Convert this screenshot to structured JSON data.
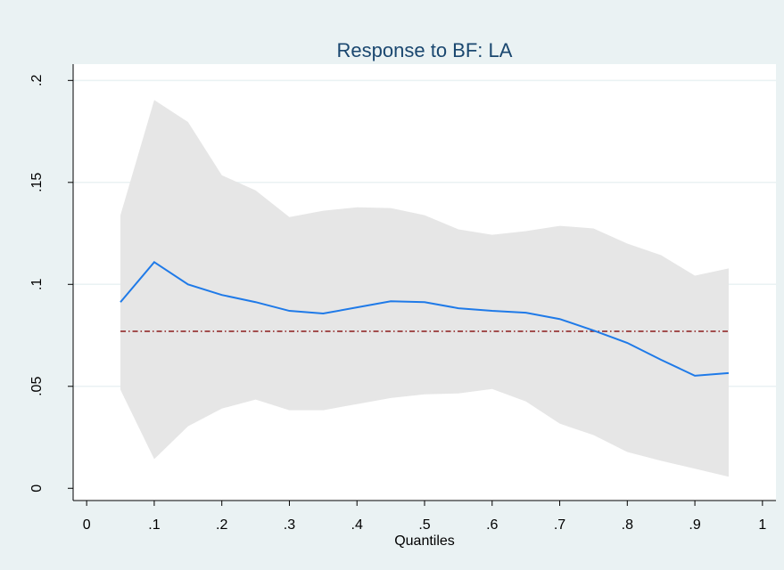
{
  "chart_data": {
    "type": "line",
    "title": "Response to BF: LA",
    "x_label": "Quantiles",
    "x": [
      0.05,
      0.1,
      0.15,
      0.2,
      0.25,
      0.3,
      0.35,
      0.4,
      0.45,
      0.5,
      0.55,
      0.6,
      0.65,
      0.7,
      0.75,
      0.8,
      0.85,
      0.9,
      0.95
    ],
    "series": [
      {
        "color": "#1f7ae8",
        "values": [
          0.0913,
          0.1109,
          0.1,
          0.0948,
          0.0913,
          0.087,
          0.0857,
          0.0887,
          0.0917,
          0.0913,
          0.0883,
          0.087,
          0.0861,
          0.083,
          0.0774,
          0.0713,
          0.063,
          0.0552,
          0.0565
        ]
      }
    ],
    "band": {
      "color": "#e6e6e6",
      "upper": [
        0.1339,
        0.1904,
        0.1796,
        0.1535,
        0.1461,
        0.133,
        0.1361,
        0.1378,
        0.1374,
        0.1339,
        0.127,
        0.1243,
        0.1261,
        0.1287,
        0.1274,
        0.12,
        0.1143,
        0.1043,
        0.1078
      ],
      "lower": [
        0.0483,
        0.0143,
        0.0304,
        0.0391,
        0.0435,
        0.0383,
        0.0383,
        0.0413,
        0.0443,
        0.0461,
        0.0465,
        0.0487,
        0.0426,
        0.0317,
        0.0261,
        0.0178,
        0.0135,
        0.0096,
        0.0057
      ]
    },
    "reference_line": {
      "value": 0.077,
      "color": "#8b1a1a"
    },
    "xlim": [
      -0.02,
      1.02
    ],
    "ylim": [
      -0.006,
      0.208
    ],
    "xticks": [
      0,
      {
        "value": 0.1,
        "label": ".1"
      },
      {
        "value": 0.2,
        "label": ".2"
      },
      {
        "value": 0.3,
        "label": ".3"
      },
      {
        "value": 0.4,
        "label": ".4"
      },
      {
        "value": 0.5,
        "label": ".5"
      },
      {
        "value": 0.6,
        "label": ".6"
      },
      {
        "value": 0.7,
        "label": ".7"
      },
      {
        "value": 0.8,
        "label": ".8"
      },
      {
        "value": 0.9,
        "label": ".9"
      },
      1
    ],
    "yticks": [
      0,
      {
        "value": 0.05,
        "label": ".05"
      },
      {
        "value": 0.1,
        "label": ".1"
      },
      {
        "value": 0.15,
        "label": ".15"
      },
      {
        "value": 0.2,
        "label": ".2"
      }
    ],
    "grid": true
  }
}
